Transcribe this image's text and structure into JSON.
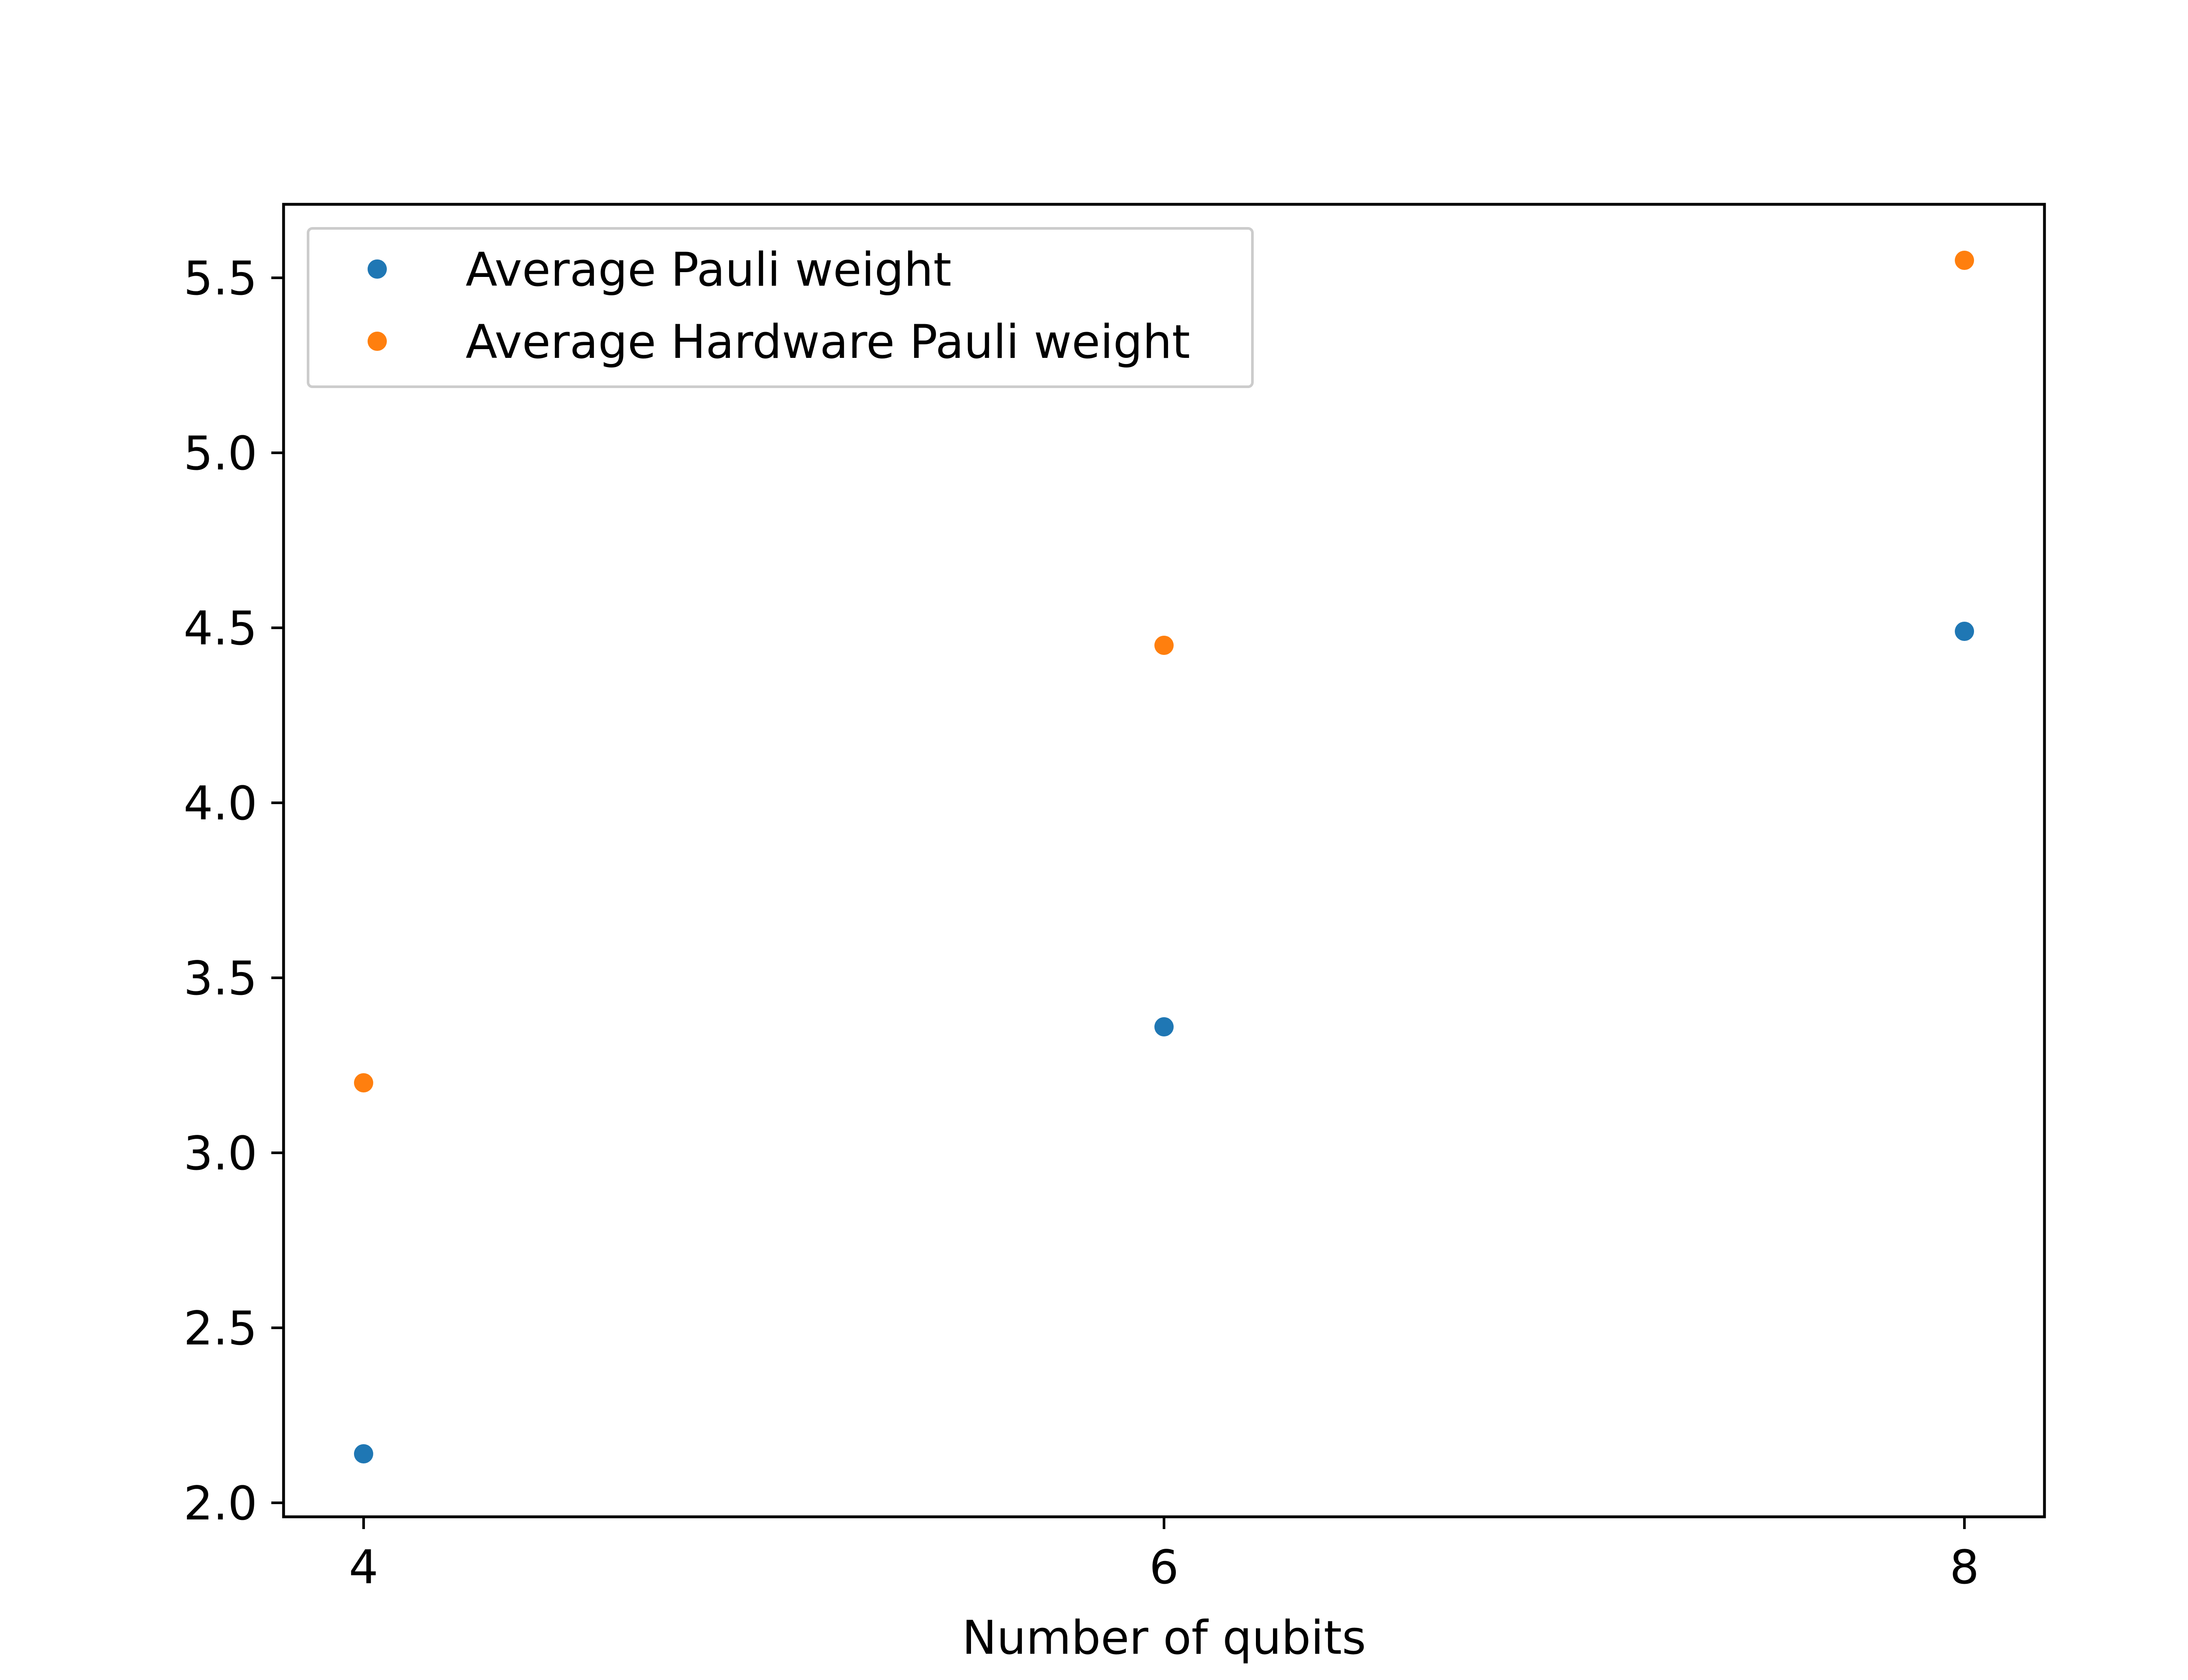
{
  "chart_data": {
    "type": "scatter",
    "title": "",
    "xlabel": "Number of qubits",
    "ylabel": "",
    "xlim": [
      3.8,
      8.2
    ],
    "ylim": [
      1.96,
      5.71
    ],
    "xticks": [
      4,
      6,
      8
    ],
    "xtick_labels": [
      "4",
      "6",
      "8"
    ],
    "yticks": [
      2.0,
      2.5,
      3.0,
      3.5,
      4.0,
      4.5,
      5.0,
      5.5
    ],
    "ytick_labels": [
      "2.0",
      "2.5",
      "3.0",
      "3.5",
      "4.0",
      "4.5",
      "5.0",
      "5.5"
    ],
    "grid": false,
    "legend_position": "upper-left",
    "series": [
      {
        "name": "Average Pauli weight",
        "color": "#1f77b4",
        "x": [
          4,
          6,
          8
        ],
        "y": [
          2.14,
          3.36,
          4.49
        ]
      },
      {
        "name": "Average Hardware Pauli weight",
        "color": "#ff7f0e",
        "x": [
          4,
          6,
          8
        ],
        "y": [
          3.2,
          4.45,
          5.55
        ]
      }
    ]
  }
}
